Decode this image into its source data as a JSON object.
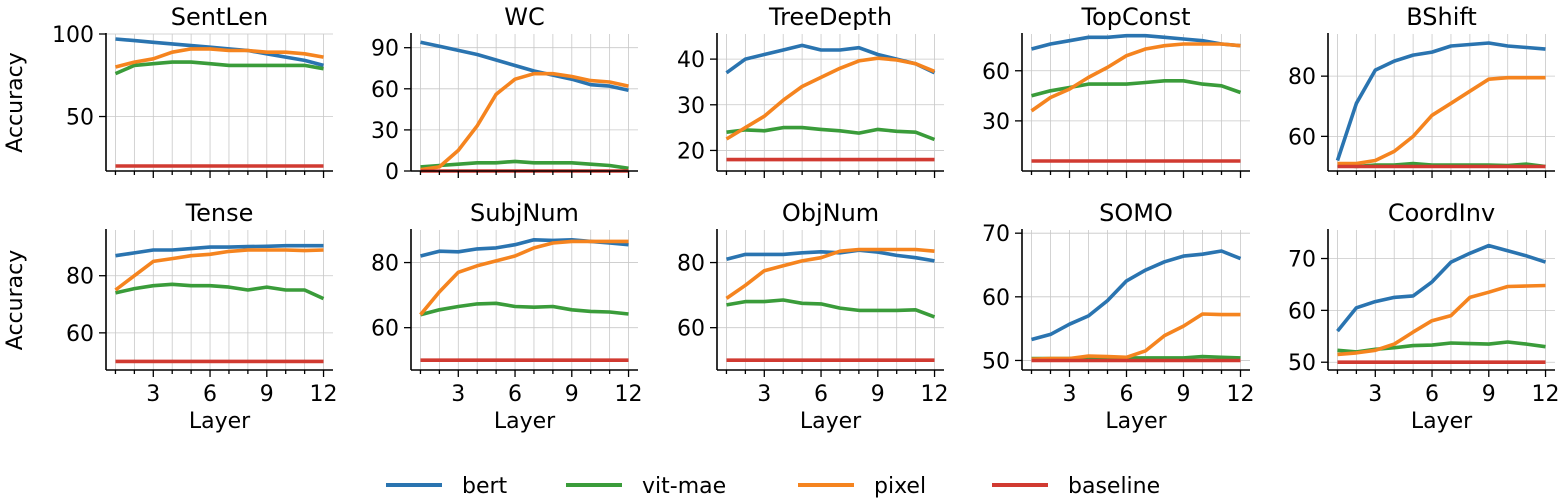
{
  "colors": {
    "bert": "#2a74b0",
    "vit-mae": "#3a9c3a",
    "pixel": "#f5841f",
    "baseline": "#d13a31"
  },
  "legend": [
    {
      "key": "bert",
      "label": "bert"
    },
    {
      "key": "vit-mae",
      "label": "vit-mae"
    },
    {
      "key": "pixel",
      "label": "pixel"
    },
    {
      "key": "baseline",
      "label": "baseline"
    }
  ],
  "chart_data": [
    {
      "type": "line",
      "title": "SentLen",
      "xlabel": "",
      "ylabel": "Accuracy",
      "x": [
        1,
        2,
        3,
        4,
        5,
        6,
        7,
        8,
        9,
        10,
        11,
        12
      ],
      "xlim": [
        0.5,
        12.5
      ],
      "ylim": [
        17,
        100
      ],
      "yticks": [
        50,
        100
      ],
      "xticks": [
        3,
        6,
        9,
        12
      ],
      "show_xtick_labels": false,
      "series": [
        {
          "name": "bert",
          "values": [
            97,
            96,
            95,
            94,
            93,
            92,
            91,
            90,
            88,
            86,
            84,
            81
          ]
        },
        {
          "name": "vit-mae",
          "values": [
            76,
            81,
            82,
            83,
            83,
            82,
            81,
            81,
            81,
            81,
            81,
            79
          ]
        },
        {
          "name": "pixel",
          "values": [
            80,
            83,
            85,
            89,
            91,
            91,
            90,
            90,
            89,
            89,
            88,
            86
          ]
        },
        {
          "name": "baseline",
          "values": [
            20,
            20,
            20,
            20,
            20,
            20,
            20,
            20,
            20,
            20,
            20,
            20
          ]
        }
      ]
    },
    {
      "type": "line",
      "title": "WC",
      "xlabel": "",
      "ylabel": "",
      "x": [
        1,
        2,
        3,
        4,
        5,
        6,
        7,
        8,
        9,
        10,
        11,
        12
      ],
      "xlim": [
        0.5,
        12.5
      ],
      "ylim": [
        0,
        100
      ],
      "yticks": [
        0,
        30,
        60,
        90
      ],
      "xticks": [
        3,
        6,
        9,
        12
      ],
      "show_xtick_labels": false,
      "series": [
        {
          "name": "bert",
          "values": [
            94,
            91,
            88,
            85,
            81,
            77,
            73,
            70,
            67,
            63,
            62,
            59
          ]
        },
        {
          "name": "vit-mae",
          "values": [
            3,
            4,
            5,
            6,
            6,
            7,
            6,
            6,
            6,
            5,
            4,
            2
          ]
        },
        {
          "name": "pixel",
          "values": [
            1,
            3,
            15,
            33,
            56,
            67,
            71,
            71,
            69,
            66,
            65,
            62
          ]
        },
        {
          "name": "baseline",
          "values": [
            0,
            0,
            0,
            0,
            0,
            0,
            0,
            0,
            0,
            0,
            0,
            0
          ]
        }
      ]
    },
    {
      "type": "line",
      "title": "TreeDepth",
      "xlabel": "",
      "ylabel": "",
      "x": [
        1,
        2,
        3,
        4,
        5,
        6,
        7,
        8,
        9,
        10,
        11,
        12
      ],
      "xlim": [
        0.5,
        12.5
      ],
      "ylim": [
        15.5,
        45.5
      ],
      "yticks": [
        20,
        30,
        40
      ],
      "xticks": [
        3,
        6,
        9,
        12
      ],
      "show_xtick_labels": false,
      "series": [
        {
          "name": "bert",
          "values": [
            37,
            40,
            41,
            42,
            43,
            42,
            42,
            42.5,
            41,
            40,
            39,
            37
          ]
        },
        {
          "name": "vit-mae",
          "values": [
            24,
            24.5,
            24.3,
            25,
            25,
            24.6,
            24.3,
            23.8,
            24.6,
            24.2,
            24,
            22.4
          ]
        },
        {
          "name": "pixel",
          "values": [
            22.5,
            25,
            27.5,
            31,
            34,
            36,
            38,
            39.6,
            40.2,
            39.8,
            39,
            37.3
          ]
        },
        {
          "name": "baseline",
          "values": [
            18,
            18,
            18,
            18,
            18,
            18,
            18,
            18,
            18,
            18,
            18,
            18
          ]
        }
      ]
    },
    {
      "type": "line",
      "title": "TopConst",
      "xlabel": "",
      "ylabel": "",
      "x": [
        1,
        2,
        3,
        4,
        5,
        6,
        7,
        8,
        9,
        10,
        11,
        12
      ],
      "xlim": [
        0.5,
        12.5
      ],
      "ylim": [
        0,
        82
      ],
      "yticks": [
        30,
        60
      ],
      "xticks": [
        3,
        6,
        9,
        12
      ],
      "show_xtick_labels": false,
      "series": [
        {
          "name": "bert",
          "values": [
            73,
            76,
            78,
            80,
            80,
            81,
            81,
            80,
            79,
            78,
            76,
            75
          ]
        },
        {
          "name": "vit-mae",
          "values": [
            45,
            48,
            50,
            52,
            52,
            52,
            53,
            54,
            54,
            52,
            51,
            47
          ]
        },
        {
          "name": "pixel",
          "values": [
            36,
            44,
            49,
            56,
            62,
            69,
            73,
            75,
            76,
            76,
            76,
            75
          ]
        },
        {
          "name": "baseline",
          "values": [
            6,
            6,
            6,
            6,
            6,
            6,
            6,
            6,
            6,
            6,
            6,
            6
          ]
        }
      ]
    },
    {
      "type": "line",
      "title": "BShift",
      "xlabel": "",
      "ylabel": "",
      "x": [
        1,
        2,
        3,
        4,
        5,
        6,
        7,
        8,
        9,
        10,
        11,
        12
      ],
      "xlim": [
        0.5,
        12.5
      ],
      "ylim": [
        48.5,
        94
      ],
      "yticks": [
        60,
        80
      ],
      "xticks": [
        3,
        6,
        9,
        12
      ],
      "show_xtick_labels": false,
      "series": [
        {
          "name": "bert",
          "values": [
            52,
            71,
            82,
            85,
            87,
            88,
            90,
            90.5,
            91,
            90,
            89.5,
            89
          ]
        },
        {
          "name": "vit-mae",
          "values": [
            50.5,
            50,
            50.5,
            50.5,
            51,
            50.5,
            50.5,
            50.5,
            50.5,
            50.3,
            50.8,
            50
          ]
        },
        {
          "name": "pixel",
          "values": [
            51,
            51,
            52,
            55,
            60,
            67,
            71,
            75,
            79,
            79.5,
            79.5,
            79.5
          ]
        },
        {
          "name": "baseline",
          "values": [
            50,
            50,
            50,
            50,
            50,
            50,
            50,
            50,
            50,
            50,
            50,
            50
          ]
        }
      ]
    },
    {
      "type": "line",
      "title": "Tense",
      "xlabel": "Layer",
      "ylabel": "Accuracy",
      "x": [
        1,
        2,
        3,
        4,
        5,
        6,
        7,
        8,
        9,
        10,
        11,
        12
      ],
      "xlim": [
        0.5,
        12.5
      ],
      "ylim": [
        47,
        96
      ],
      "yticks": [
        60,
        80
      ],
      "xticks": [
        3,
        6,
        9,
        12
      ],
      "show_xtick_labels": true,
      "series": [
        {
          "name": "bert",
          "values": [
            87,
            88,
            89,
            89,
            89.5,
            90,
            90,
            90.2,
            90.3,
            90.5,
            90.5,
            90.5
          ]
        },
        {
          "name": "vit-mae",
          "values": [
            74,
            75.5,
            76.5,
            77,
            76.5,
            76.5,
            76,
            75,
            76,
            75,
            75,
            72
          ]
        },
        {
          "name": "pixel",
          "values": [
            75,
            80,
            85,
            86,
            87,
            87.5,
            88.5,
            89,
            89,
            89,
            88.8,
            89
          ]
        },
        {
          "name": "baseline",
          "values": [
            50,
            50,
            50,
            50,
            50,
            50,
            50,
            50,
            50,
            50,
            50,
            50
          ]
        }
      ]
    },
    {
      "type": "line",
      "title": "SubjNum",
      "xlabel": "Layer",
      "ylabel": "",
      "x": [
        1,
        2,
        3,
        4,
        5,
        6,
        7,
        8,
        9,
        10,
        11,
        12
      ],
      "xlim": [
        0.5,
        12.5
      ],
      "ylim": [
        47,
        90
      ],
      "yticks": [
        60,
        80
      ],
      "xticks": [
        3,
        6,
        9,
        12
      ],
      "show_xtick_labels": true,
      "series": [
        {
          "name": "bert",
          "values": [
            82,
            83.5,
            83.3,
            84.2,
            84.5,
            85.5,
            87,
            86.8,
            87,
            86.5,
            86,
            85.5
          ]
        },
        {
          "name": "vit-mae",
          "values": [
            64,
            65.5,
            66.5,
            67.3,
            67.5,
            66.5,
            66.3,
            66.5,
            65.5,
            65,
            64.8,
            64.2
          ]
        },
        {
          "name": "pixel",
          "values": [
            64,
            71,
            77,
            79,
            80.5,
            82,
            84.5,
            86,
            86.5,
            86.5,
            86.5,
            86.5
          ]
        },
        {
          "name": "baseline",
          "values": [
            50,
            50,
            50,
            50,
            50,
            50,
            50,
            50,
            50,
            50,
            50,
            50
          ]
        }
      ]
    },
    {
      "type": "line",
      "title": "ObjNum",
      "xlabel": "Layer",
      "ylabel": "",
      "x": [
        1,
        2,
        3,
        4,
        5,
        6,
        7,
        8,
        9,
        10,
        11,
        12
      ],
      "xlim": [
        0.5,
        12.5
      ],
      "ylim": [
        47,
        90
      ],
      "yticks": [
        60,
        80
      ],
      "xticks": [
        3,
        6,
        9,
        12
      ],
      "show_xtick_labels": true,
      "series": [
        {
          "name": "bert",
          "values": [
            81,
            82.5,
            82.5,
            82.5,
            83,
            83.3,
            83,
            83.8,
            83.2,
            82.2,
            81.5,
            80.5
          ]
        },
        {
          "name": "vit-mae",
          "values": [
            67,
            68,
            68,
            68.5,
            67.5,
            67.3,
            66,
            65.3,
            65.3,
            65.3,
            65.5,
            63.3
          ]
        },
        {
          "name": "pixel",
          "values": [
            69,
            73,
            77.5,
            79,
            80.5,
            81.5,
            83.5,
            84,
            84,
            84,
            84,
            83.5
          ]
        },
        {
          "name": "baseline",
          "values": [
            50,
            50,
            50,
            50,
            50,
            50,
            50,
            50,
            50,
            50,
            50,
            50
          ]
        }
      ]
    },
    {
      "type": "line",
      "title": "SOMO",
      "xlabel": "Layer",
      "ylabel": "",
      "x": [
        1,
        2,
        3,
        4,
        5,
        6,
        7,
        8,
        9,
        10,
        11,
        12
      ],
      "xlim": [
        0.5,
        12.5
      ],
      "ylim": [
        48.5,
        70.5
      ],
      "yticks": [
        50,
        60,
        70
      ],
      "xticks": [
        3,
        6,
        9,
        12
      ],
      "show_xtick_labels": true,
      "series": [
        {
          "name": "bert",
          "values": [
            53.3,
            54.1,
            55.7,
            57,
            59.4,
            62.5,
            64.2,
            65.5,
            66.4,
            66.7,
            67.2,
            66
          ]
        },
        {
          "name": "vit-mae",
          "values": [
            50.3,
            50.3,
            50.3,
            50.4,
            50.3,
            50.4,
            50.4,
            50.4,
            50.4,
            50.6,
            50.5,
            50.4
          ]
        },
        {
          "name": "pixel",
          "values": [
            50.2,
            50.3,
            50.3,
            50.7,
            50.6,
            50.5,
            51.5,
            53.9,
            55.4,
            57.3,
            57.2,
            57.2
          ]
        },
        {
          "name": "baseline",
          "values": [
            50,
            50,
            50,
            50,
            50,
            50,
            50,
            50,
            50,
            50,
            50,
            50
          ]
        }
      ]
    },
    {
      "type": "line",
      "title": "CoordInv",
      "xlabel": "Layer",
      "ylabel": "",
      "x": [
        1,
        2,
        3,
        4,
        5,
        6,
        7,
        8,
        9,
        10,
        11,
        12
      ],
      "xlim": [
        0.5,
        12.5
      ],
      "ylim": [
        48.5,
        75.5
      ],
      "yticks": [
        50,
        60,
        70
      ],
      "xticks": [
        3,
        6,
        9,
        12
      ],
      "show_xtick_labels": true,
      "series": [
        {
          "name": "bert",
          "values": [
            56,
            60.5,
            61.7,
            62.5,
            62.8,
            65.5,
            69.3,
            71,
            72.5,
            71.5,
            70.5,
            69.3
          ]
        },
        {
          "name": "vit-mae",
          "values": [
            52.3,
            52,
            52.5,
            52.8,
            53.2,
            53.3,
            53.7,
            53.6,
            53.5,
            53.9,
            53.5,
            53
          ]
        },
        {
          "name": "pixel",
          "values": [
            51.5,
            51.8,
            52.3,
            53.5,
            55.8,
            58,
            59,
            62.5,
            63.5,
            64.6,
            64.7,
            64.8
          ]
        },
        {
          "name": "baseline",
          "values": [
            50,
            50,
            50,
            50,
            50,
            50,
            50,
            50,
            50,
            50,
            50,
            50
          ]
        }
      ]
    }
  ]
}
